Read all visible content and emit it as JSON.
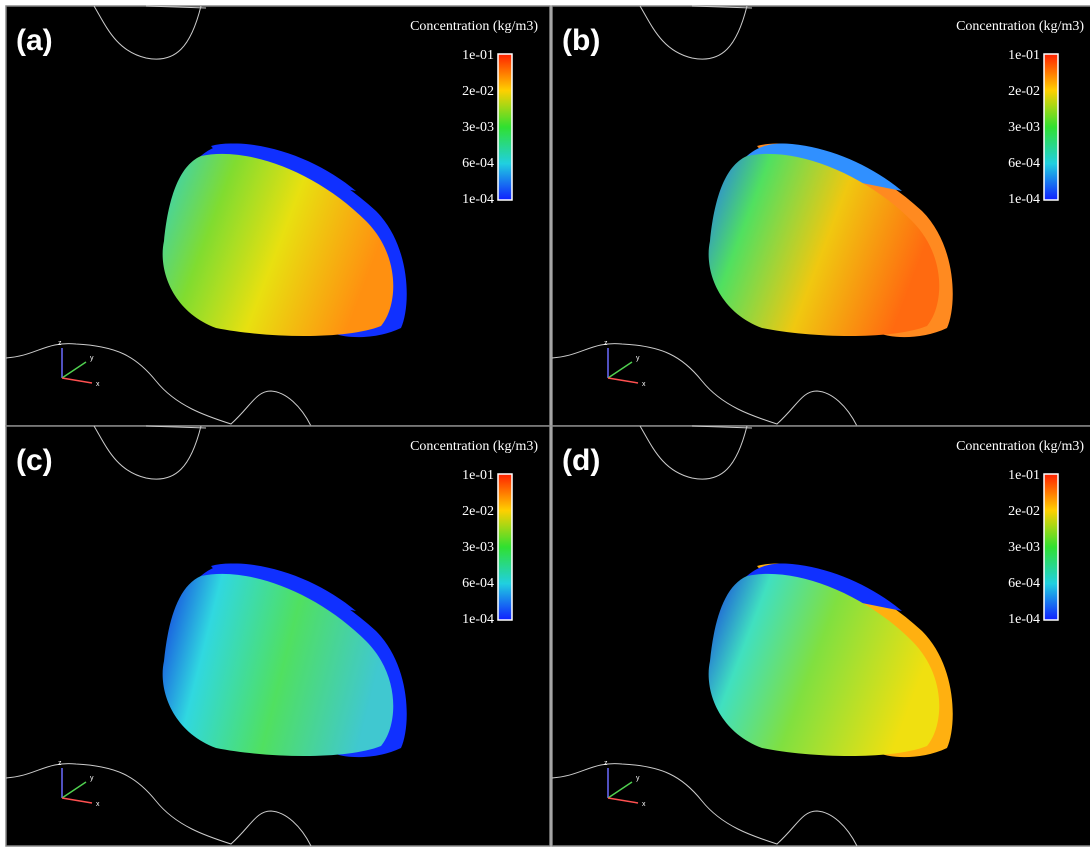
{
  "panels": [
    {
      "label": "(a)",
      "colorbar": {
        "title": "Concentration (kg/m3)",
        "ticks": [
          "1e-01",
          "2e-02",
          "3e-03",
          "6e-04",
          "1e-04"
        ]
      },
      "triad": [
        "z",
        "y",
        "x"
      ]
    },
    {
      "label": "(b)",
      "colorbar": {
        "title": "Concentration (kg/m3)",
        "ticks": [
          "1e-01",
          "2e-02",
          "3e-03",
          "6e-04",
          "1e-04"
        ]
      },
      "triad": [
        "z",
        "y",
        "x"
      ]
    },
    {
      "label": "(c)",
      "colorbar": {
        "title": "Concentration (kg/m3)",
        "ticks": [
          "1e-01",
          "2e-02",
          "3e-03",
          "6e-04",
          "1e-04"
        ]
      },
      "triad": [
        "z",
        "y",
        "x"
      ]
    },
    {
      "label": "(d)",
      "colorbar": {
        "title": "Concentration (kg/m3)",
        "ticks": [
          "1e-01",
          "2e-02",
          "3e-03",
          "6e-04",
          "1e-04"
        ]
      },
      "triad": [
        "z",
        "y",
        "x"
      ]
    }
  ]
}
